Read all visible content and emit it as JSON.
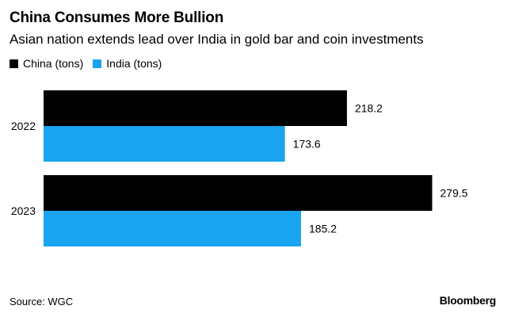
{
  "chart_data": {
    "type": "bar",
    "orientation": "horizontal",
    "title": "China Consumes More Bullion",
    "subtitle": "Asian nation extends lead over India in gold bar and coin investments",
    "categories": [
      "2022",
      "2023"
    ],
    "series": [
      {
        "name": "China (tons)",
        "color": "#000000",
        "values": [
          218.2,
          279.5
        ]
      },
      {
        "name": "India (tons)",
        "color": "#1aa3ee",
        "values": [
          173.6,
          185.2
        ]
      }
    ],
    "xlim": [
      0,
      330
    ],
    "grid": false,
    "legend_position": "top-left",
    "source": "Source: WGC",
    "logo": "Bloomberg"
  }
}
